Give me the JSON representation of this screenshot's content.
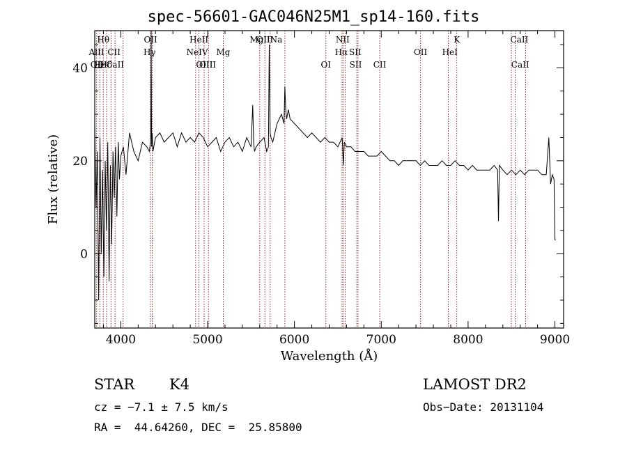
{
  "chart_data": {
    "type": "line",
    "title": "spec-56601-GAC046N25M1_sp14-160.fits",
    "xlabel": "Wavelength (Å)",
    "ylabel": "Flux (relative)",
    "xlim": [
      3700,
      9100
    ],
    "ylim": [
      -16,
      48
    ],
    "xticks": [
      4000,
      5000,
      6000,
      7000,
      8000,
      9000
    ],
    "yticks": [
      0,
      20,
      40
    ],
    "grid": false,
    "line_color": "#000000",
    "marker_color": "#8b1a1a",
    "spectrum": {
      "x": [
        3700,
        3715,
        3730,
        3745,
        3760,
        3775,
        3790,
        3805,
        3820,
        3835,
        3850,
        3865,
        3880,
        3895,
        3910,
        3925,
        3940,
        3955,
        3970,
        3985,
        4000,
        4030,
        4060,
        4100,
        4150,
        4200,
        4250,
        4300,
        4330,
        4345,
        4350,
        4355,
        4362,
        4370,
        4400,
        4450,
        4500,
        4550,
        4600,
        4650,
        4700,
        4750,
        4800,
        4850,
        4900,
        4950,
        5000,
        5050,
        5100,
        5150,
        5200,
        5250,
        5300,
        5350,
        5400,
        5450,
        5500,
        5520,
        5530,
        5540,
        5560,
        5600,
        5650,
        5680,
        5700,
        5710,
        5720,
        5730,
        5750,
        5800,
        5850,
        5880,
        5890,
        5900,
        5910,
        5930,
        5950,
        6000,
        6050,
        6100,
        6150,
        6200,
        6250,
        6300,
        6350,
        6400,
        6450,
        6500,
        6550,
        6563,
        6575,
        6600,
        6650,
        6700,
        6750,
        6800,
        6850,
        6900,
        6950,
        7000,
        7050,
        7100,
        7150,
        7200,
        7250,
        7300,
        7350,
        7400,
        7450,
        7500,
        7550,
        7600,
        7650,
        7700,
        7750,
        7800,
        7850,
        7900,
        7950,
        8000,
        8050,
        8100,
        8150,
        8200,
        8250,
        8300,
        8340,
        8350,
        8360,
        8400,
        8450,
        8500,
        8550,
        8600,
        8650,
        8700,
        8750,
        8800,
        8850,
        8900,
        8930,
        8950,
        8970,
        8990,
        9000,
        9010
      ],
      "y": [
        28,
        10,
        22,
        -10,
        25,
        0,
        18,
        -5,
        20,
        5,
        24,
        -6,
        19,
        2,
        22,
        12,
        23,
        8,
        24,
        16,
        21,
        23,
        17,
        26,
        22,
        20,
        24,
        23,
        22,
        25,
        50,
        23,
        26,
        22,
        25,
        26,
        24,
        25,
        26,
        23,
        26,
        24,
        25,
        24,
        26,
        25,
        23,
        24,
        25,
        22,
        24,
        25,
        23,
        24,
        22,
        25,
        23,
        32,
        24,
        22,
        23,
        24,
        25,
        22,
        23,
        45,
        26,
        25,
        24,
        28,
        30,
        28,
        36,
        31,
        29,
        31,
        29,
        28,
        27,
        26,
        25,
        26,
        25,
        24,
        25,
        24,
        24,
        23,
        25,
        19,
        24,
        23,
        23,
        22,
        22,
        22,
        21,
        21,
        21,
        22,
        21,
        20,
        20,
        19,
        20,
        20,
        20,
        20,
        19,
        20,
        19,
        19,
        19,
        20,
        19,
        19,
        20,
        19,
        19,
        18,
        19,
        18,
        18,
        18,
        18,
        19,
        18,
        7,
        19,
        18,
        17,
        18,
        17,
        18,
        17,
        18,
        18,
        18,
        17,
        17,
        25,
        15,
        17,
        16,
        3,
        3
      ]
    },
    "line_markers": [
      {
        "label": "Hθ",
        "x": 3798,
        "row": 1
      },
      {
        "label": "AlII",
        "x": 3720,
        "row": 2
      },
      {
        "label": "CII",
        "x": 3922,
        "row": 2
      },
      {
        "label": "OII",
        "x": 3727,
        "row": 3
      },
      {
        "label": "Hε",
        "x": 3762,
        "row": 3
      },
      {
        "label": "Hδ",
        "x": 3830,
        "row": 3
      },
      {
        "label": "CaII",
        "x": 3934,
        "row": 3
      },
      {
        "label": "OII",
        "x": 4343,
        "row": 1
      },
      {
        "label": "Hγ",
        "x": 4332,
        "row": 2
      },
      {
        "label": "HeII",
        "x": 4900,
        "row": 1
      },
      {
        "label": "NeIV",
        "x": 4880,
        "row": 2
      },
      {
        "label": "Mg",
        "x": 5180,
        "row": 2
      },
      {
        "label": "OIII",
        "x": 4963,
        "row": 3
      },
      {
        "label": "OIII",
        "x": 5000,
        "row": 3
      },
      {
        "label": "MgII",
        "x": 5602,
        "row": 1
      },
      {
        "label": "OIII",
        "x": 5660,
        "row": 1
      },
      {
        "label": "Na",
        "x": 5790,
        "row": 1
      },
      {
        "label": "NII",
        "x": 6555,
        "row": 1
      },
      {
        "label": "Hα",
        "x": 6540,
        "row": 2
      },
      {
        "label": "SII",
        "x": 6700,
        "row": 2
      },
      {
        "label": "OI",
        "x": 6362,
        "row": 3
      },
      {
        "label": "SII",
        "x": 6705,
        "row": 3
      },
      {
        "label": "CII",
        "x": 6982,
        "row": 3
      },
      {
        "label": "OII",
        "x": 7452,
        "row": 2
      },
      {
        "label": "K",
        "x": 7870,
        "row": 1
      },
      {
        "label": "HeI",
        "x": 7790,
        "row": 2
      },
      {
        "label": "CaII",
        "x": 8590,
        "row": 1
      },
      {
        "label": "CaII",
        "x": 8600,
        "row": 3
      }
    ],
    "marker_lines_x": [
      3722,
      3760,
      3798,
      3836,
      3889,
      3934,
      4026,
      4342,
      4362,
      4862,
      4900,
      4960,
      5010,
      5180,
      5600,
      5660,
      5720,
      5890,
      6362,
      6548,
      6563,
      6585,
      6718,
      6732,
      6982,
      7452,
      7772,
      7870,
      8498,
      8542,
      8662
    ]
  },
  "footer": {
    "object_class": "STAR",
    "subclass": "K4",
    "survey": "LAMOST DR2",
    "redshift": "cz = −7.1 ± 7.5 km/s",
    "obs_date": "Obs−Date: 20131104",
    "coords": "RA =  44.64260, DEC =  25.85800"
  }
}
